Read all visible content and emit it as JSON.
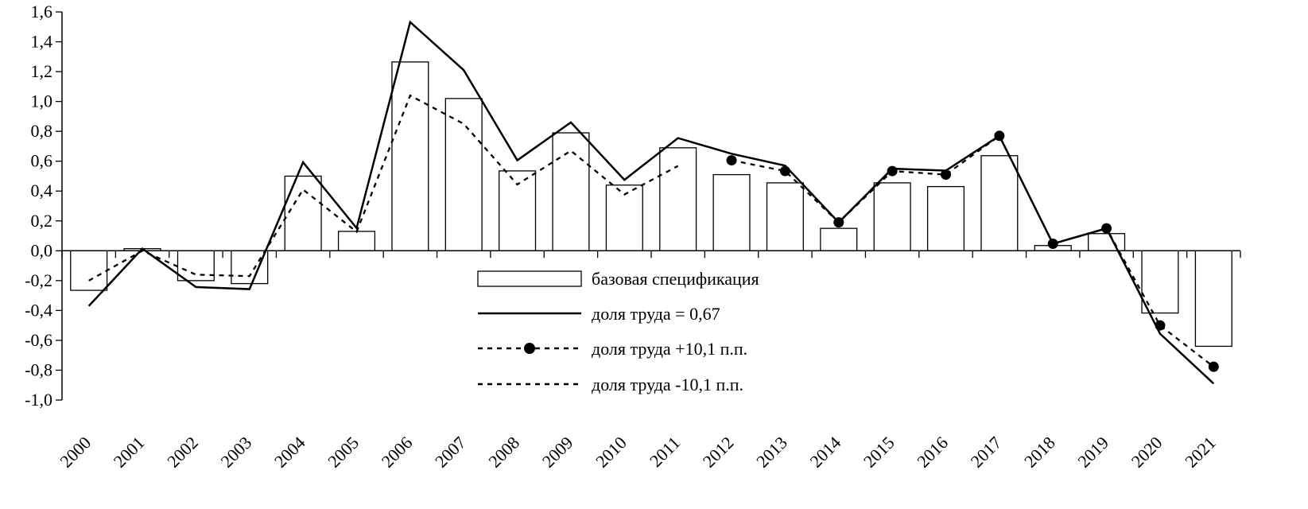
{
  "chart_data": {
    "type": "bar+line",
    "categories": [
      "2000",
      "2001",
      "2002",
      "2003",
      "2004",
      "2005",
      "2006",
      "2007",
      "2008",
      "2009",
      "2010",
      "2011",
      "2012",
      "2013",
      "2014",
      "2015",
      "2016",
      "2017",
      "2018",
      "2019",
      "2020",
      "2021"
    ],
    "ylim": [
      -1.0,
      1.6
    ],
    "yticks": [
      "-1,0",
      "-0,8",
      "-0,6",
      "-0,4",
      "-0,2",
      "0,0",
      "0,2",
      "0,4",
      "0,6",
      "0,8",
      "1,0",
      "1,2",
      "1,4",
      "1,6"
    ],
    "ytick_values": [
      -1.0,
      -0.8,
      -0.6,
      -0.4,
      -0.2,
      0.0,
      0.2,
      0.4,
      0.6,
      0.8,
      1.0,
      1.2,
      1.4,
      1.6
    ],
    "grid": false,
    "legend_position": "center-bottom",
    "series": [
      {
        "name": "базовая спецификация",
        "kind": "bar",
        "values": [
          -0.265,
          0.014,
          -0.2,
          -0.22,
          0.5,
          0.13,
          1.265,
          1.02,
          0.535,
          0.79,
          0.44,
          0.69,
          0.51,
          0.455,
          0.15,
          0.455,
          0.43,
          0.637,
          0.035,
          0.115,
          -0.417,
          -0.64
        ]
      },
      {
        "name": "доля труда = 0,67",
        "kind": "line-solid",
        "values": [
          -0.37,
          0.014,
          -0.243,
          -0.257,
          0.593,
          0.152,
          1.532,
          1.21,
          0.606,
          0.86,
          0.475,
          0.755,
          0.65,
          0.57,
          0.19,
          0.55,
          0.537,
          0.77,
          0.047,
          0.15,
          -0.556,
          -0.89
        ]
      },
      {
        "name": "доля труда +10,1 п.п.",
        "kind": "line-dotted-marker",
        "values": [
          null,
          null,
          null,
          null,
          null,
          null,
          null,
          null,
          null,
          null,
          null,
          null,
          0.606,
          0.534,
          0.19,
          0.534,
          0.51,
          0.77,
          0.047,
          0.15,
          -0.5,
          -0.777
        ]
      },
      {
        "name": "доля труда -10,1 п.п.",
        "kind": "line-dotted",
        "values": [
          -0.2,
          0.0,
          -0.16,
          -0.17,
          0.41,
          0.127,
          1.04,
          0.85,
          0.444,
          0.67,
          0.377,
          0.568,
          null,
          null,
          null,
          null,
          null,
          null,
          null,
          null,
          null,
          null
        ]
      }
    ]
  }
}
